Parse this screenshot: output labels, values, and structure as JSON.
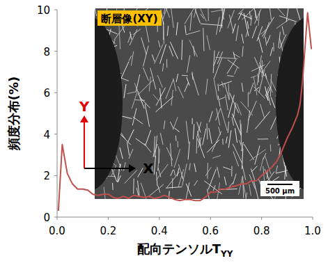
{
  "chart_data": {
    "type": "line",
    "y_label": "頻度分布(%)",
    "x_label": {
      "text": "配向テンソルT",
      "subscript": "YY"
    },
    "x": [
      0.005,
      0.02,
      0.04,
      0.06,
      0.08,
      0.1,
      0.12,
      0.14,
      0.16,
      0.18,
      0.2,
      0.22,
      0.24,
      0.26,
      0.28,
      0.3,
      0.32,
      0.34,
      0.36,
      0.38,
      0.4,
      0.42,
      0.44,
      0.46,
      0.48,
      0.5,
      0.52,
      0.54,
      0.56,
      0.58,
      0.6,
      0.62,
      0.64,
      0.66,
      0.68,
      0.7,
      0.72,
      0.74,
      0.76,
      0.78,
      0.8,
      0.82,
      0.84,
      0.86,
      0.88,
      0.9,
      0.92,
      0.94,
      0.95,
      0.96,
      0.98,
      0.995
    ],
    "values": [
      0.3,
      3.5,
      2.1,
      1.6,
      1.35,
      1.35,
      1.3,
      1.1,
      1.05,
      1.1,
      1.1,
      0.95,
      0.9,
      1.0,
      0.9,
      1.05,
      1.0,
      0.95,
      1.0,
      0.9,
      0.95,
      1.05,
      0.95,
      0.85,
      0.8,
      0.85,
      0.85,
      0.8,
      0.8,
      0.95,
      1.2,
      1.2,
      1.35,
      1.35,
      1.45,
      1.5,
      1.6,
      1.6,
      1.75,
      1.75,
      2.0,
      2.2,
      2.4,
      2.7,
      3.2,
      3.8,
      4.3,
      4.9,
      5.4,
      6.5,
      9.85,
      8.1
    ],
    "color": "#c0504d",
    "xlim": [
      0,
      1
    ],
    "ylim": [
      0,
      10
    ],
    "xticks": [
      {
        "value": 0,
        "label": "0.0"
      },
      0.2,
      0.4,
      0.6,
      0.8,
      {
        "value": 1,
        "label": "1.0"
      }
    ],
    "yticks": [
      0,
      2,
      4,
      6,
      8,
      10
    ],
    "grid": false,
    "inset": {
      "label": "断層像(XY)",
      "scale_bar": "500 µm"
    },
    "direction_arrows": {
      "y": "Y",
      "x": "X"
    }
  }
}
